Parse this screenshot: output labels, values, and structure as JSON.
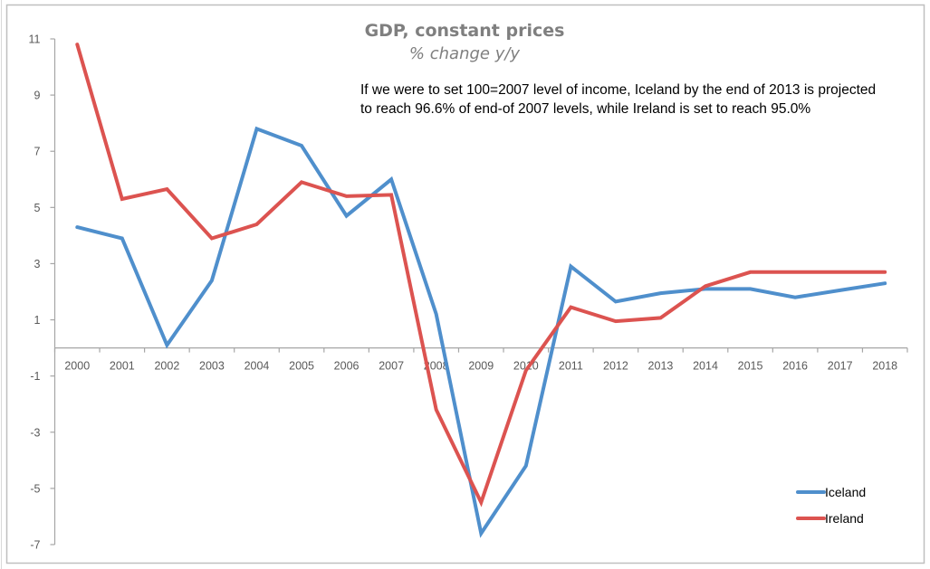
{
  "chart_data": {
    "type": "line",
    "title": "GDP, constant prices",
    "subtitle": "% change y/y",
    "annotation": [
      "If we were to set 100=2007 level of income, Iceland by the end of 2013 is projected",
      "to reach 96.6% of end-of 2007 levels, while Ireland is set to reach 95.0%"
    ],
    "xlabel": "",
    "ylabel": "",
    "categories": [
      "2000",
      "2001",
      "2002",
      "2003",
      "2004",
      "2005",
      "2006",
      "2007",
      "2008",
      "2009",
      "2010",
      "2011",
      "2012",
      "2013",
      "2014",
      "2015",
      "2016",
      "2017",
      "2018"
    ],
    "yticks": [
      11,
      9,
      7,
      5,
      3,
      1,
      -1,
      -3,
      -5,
      -7
    ],
    "ylim": [
      -7,
      11
    ],
    "grid": false,
    "legend_position": "bottom-right",
    "series": [
      {
        "name": "Iceland",
        "color": "#4f8fcc",
        "values": [
          4.3,
          3.9,
          0.1,
          2.4,
          7.8,
          7.2,
          4.7,
          6.0,
          1.2,
          -6.6,
          -4.2,
          2.9,
          1.65,
          1.95,
          2.1,
          2.1,
          1.8,
          2.05,
          2.3
        ]
      },
      {
        "name": "Ireland",
        "color": "#dc5350",
        "values": [
          10.8,
          5.3,
          5.65,
          3.9,
          4.4,
          5.9,
          5.4,
          5.45,
          -2.2,
          -5.5,
          -0.8,
          1.45,
          0.95,
          1.07,
          2.2,
          2.7,
          2.7,
          2.7,
          2.7
        ]
      }
    ]
  }
}
